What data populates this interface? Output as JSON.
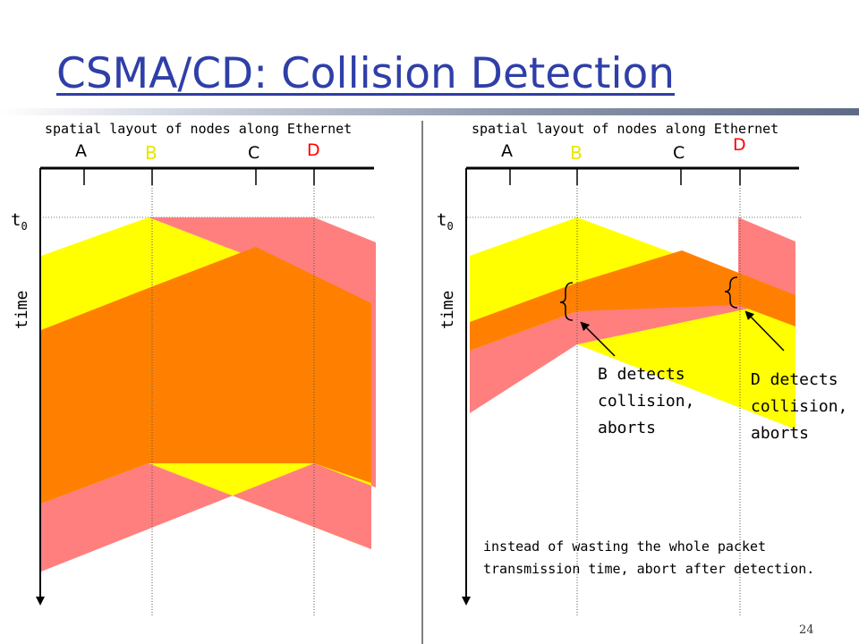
{
  "title": "CSMA/CD: Collision Detection",
  "left_panel": {
    "header": "spatial layout of nodes along Ethernet",
    "nodes": [
      "A",
      "B",
      "C",
      "D"
    ],
    "t0_base": "t",
    "t0_sub": "0",
    "time_label": "time"
  },
  "right_panel": {
    "header": "spatial layout of nodes along Ethernet",
    "nodes": [
      "A",
      "B",
      "C",
      "D"
    ],
    "t0_base": "t",
    "t0_sub": "0",
    "time_label": "time",
    "b_note": [
      "B detects",
      "collision,",
      "aborts"
    ],
    "d_note": [
      "D detects",
      "collision,",
      "aborts"
    ],
    "footer": [
      "instead of wasting the whole packet",
      "transmission time, abort after detection."
    ]
  },
  "page_number": "24",
  "colors": {
    "title": "#2f3fa8",
    "yellow": "#ffff00",
    "pink": "#ff7f7f",
    "orange": "#ff8000",
    "node_highlight": "#ff0000",
    "node_b": "#e6e600"
  }
}
